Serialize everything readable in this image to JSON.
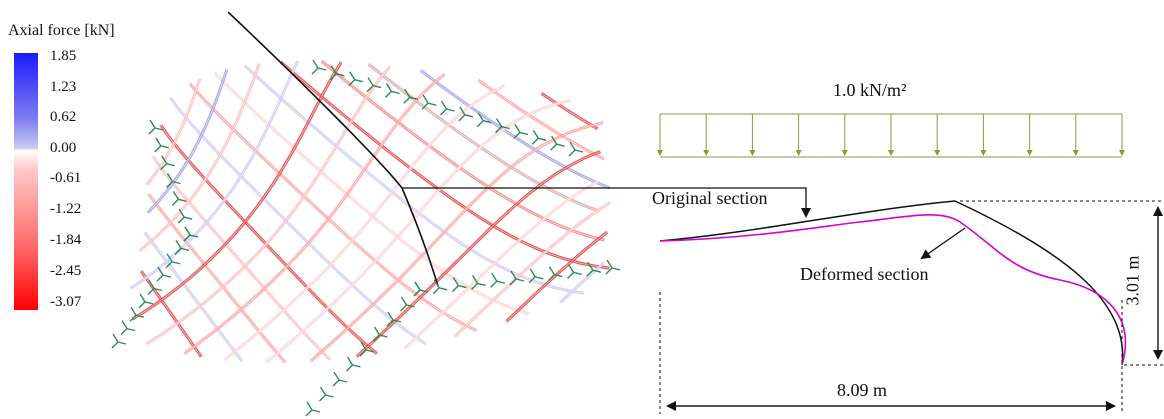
{
  "legend": {
    "title": "Axial force [kN]",
    "ticks": [
      "1.85",
      "1.23",
      "0.62",
      "0.00",
      "-0.61",
      "-1.22",
      "-1.84",
      "-2.45",
      "-3.07"
    ]
  },
  "section": {
    "load_label": "1.0 kN/m²",
    "original_label": "Original section",
    "deformed_label": "Deformed section",
    "height_label": "3.01 m",
    "span_label": "8.09 m"
  },
  "colors": {
    "compression": "#ff0000",
    "tension": "#1a1aff",
    "original_section": "#111111",
    "deformed_section": "#d400d4",
    "load_arrows": "#8a9a3a",
    "supports": "#2e8b57"
  }
}
